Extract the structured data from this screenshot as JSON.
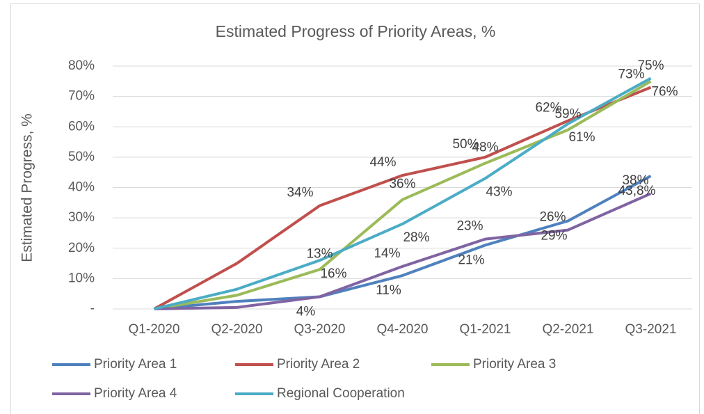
{
  "chart_data": {
    "type": "line",
    "title": "Estimated Progress of Priority Areas, %",
    "y_label": "Estimated Progress, %",
    "categories": [
      "Q1-2020",
      "Q2-2020",
      "Q3-2020",
      "Q4-2020",
      "Q1-2021",
      "Q2-2021",
      "Q3-2021"
    ],
    "series": [
      {
        "name": "Priority Area 1",
        "color": "#4f81bd",
        "values": [
          0,
          2.5,
          4,
          11,
          21,
          29,
          43.8
        ],
        "value_labels": [
          null,
          null,
          "4%",
          "11%",
          "21%",
          "29%",
          "43,8%"
        ]
      },
      {
        "name": "Priority Area 2",
        "color": "#c0504d",
        "values": [
          0,
          15,
          34,
          44,
          50,
          62,
          73
        ],
        "value_labels": [
          null,
          null,
          "34%",
          "44%",
          "50%",
          "62%",
          "73%"
        ]
      },
      {
        "name": "Priority Area 3",
        "color": "#9bbb59",
        "values": [
          0,
          4.5,
          13,
          36,
          48,
          59,
          75
        ],
        "value_labels": [
          null,
          null,
          "13%",
          "36%",
          "48%",
          "59%",
          "75%"
        ]
      },
      {
        "name": "Priority Area 4",
        "color": "#8064a2",
        "values": [
          0,
          0.5,
          4,
          14,
          23,
          26,
          38
        ],
        "value_labels": [
          null,
          null,
          null,
          "14%",
          "23%",
          "26%",
          "38%"
        ]
      },
      {
        "name": "Regional Cooperation",
        "color": "#4bacc6",
        "values": [
          0,
          6.5,
          16,
          28,
          43,
          61,
          76
        ],
        "value_labels": [
          null,
          null,
          "16%",
          "28%",
          "43%",
          "61%",
          "76%"
        ]
      }
    ],
    "ylim": [
      0,
      80
    ],
    "yticks": [
      {
        "value": 0,
        "label": "-"
      },
      {
        "value": 10,
        "label": "10%"
      },
      {
        "value": 20,
        "label": "20%"
      },
      {
        "value": 30,
        "label": "30%"
      },
      {
        "value": 40,
        "label": "40%"
      },
      {
        "value": 50,
        "label": "50%"
      },
      {
        "value": 60,
        "label": "60%"
      },
      {
        "value": 70,
        "label": "70%"
      },
      {
        "value": 80,
        "label": "80%"
      }
    ],
    "grid": true,
    "legend": "bottom"
  }
}
